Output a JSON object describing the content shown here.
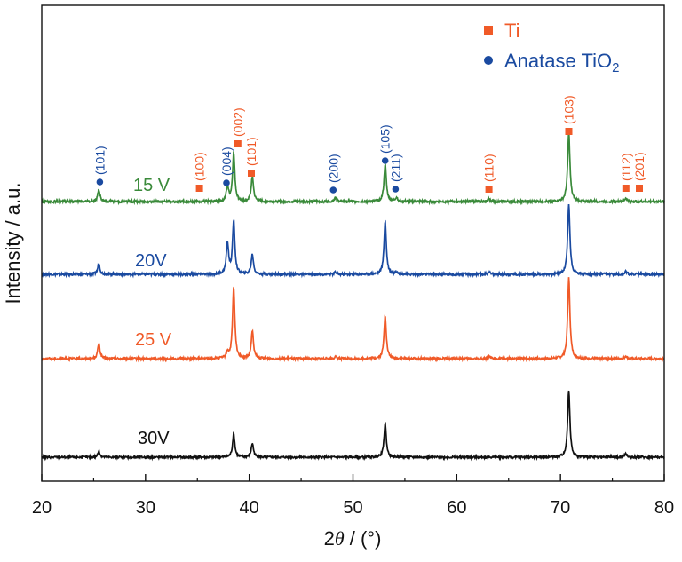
{
  "chart_data": {
    "type": "line",
    "title": "",
    "xlabel": {
      "prefix": "2",
      "symbol": "θ",
      "suffix": " / (°)"
    },
    "ylabel": "Intensity / a.u.",
    "xlim": [
      20,
      80
    ],
    "xticks": [
      "20",
      "30",
      "40",
      "50",
      "60",
      "70",
      "80"
    ],
    "legend": {
      "position": "top-right",
      "entries": [
        {
          "marker": "square",
          "color": "#f05a28",
          "label": "Ti",
          "sub": ""
        },
        {
          "marker": "circle",
          "color": "#1a4aa0",
          "label": "Anatase TiO",
          "sub": "2"
        }
      ]
    },
    "series": [
      {
        "name": "15 V",
        "color": "#3a8a3a",
        "baseline": 0.0,
        "noise_seed": 15,
        "peaks": [
          [
            25.5,
            0.9
          ],
          [
            37.9,
            1.1
          ],
          [
            38.5,
            3.6
          ],
          [
            40.3,
            1.9
          ],
          [
            48.3,
            0.3
          ],
          [
            53.1,
            2.8
          ],
          [
            54.2,
            0.3
          ],
          [
            63.1,
            0.2
          ],
          [
            70.8,
            5.2
          ],
          [
            76.3,
            0.25
          ]
        ]
      },
      {
        "name": "20V",
        "color": "#1a4aa0",
        "baseline": 0.0,
        "noise_seed": 20,
        "peaks": [
          [
            25.5,
            0.8
          ],
          [
            37.9,
            2.3
          ],
          [
            38.5,
            4.0
          ],
          [
            40.3,
            1.5
          ],
          [
            48.3,
            0.15
          ],
          [
            53.1,
            4.0
          ],
          [
            54.2,
            0.2
          ],
          [
            63.1,
            0.2
          ],
          [
            70.8,
            5.3
          ],
          [
            76.3,
            0.2
          ]
        ]
      },
      {
        "name": "25 V",
        "color": "#f05a28",
        "baseline": 0.0,
        "noise_seed": 25,
        "peaks": [
          [
            25.5,
            1.2
          ],
          [
            37.9,
            0.5
          ],
          [
            38.5,
            5.7
          ],
          [
            40.3,
            2.2
          ],
          [
            48.3,
            0.15
          ],
          [
            53.1,
            3.5
          ],
          [
            63.1,
            0.15
          ],
          [
            70.8,
            6.5
          ],
          [
            76.3,
            0.2
          ]
        ]
      },
      {
        "name": "30V",
        "color": "#111111",
        "baseline": 0.0,
        "noise_seed": 30,
        "peaks": [
          [
            25.5,
            0.5
          ],
          [
            38.5,
            2.0
          ],
          [
            40.3,
            1.2
          ],
          [
            53.1,
            2.9
          ],
          [
            70.8,
            5.8
          ],
          [
            76.3,
            0.3
          ]
        ]
      }
    ],
    "annotations": [
      {
        "label": "(101)",
        "x": 25.6,
        "phase": "anatase"
      },
      {
        "label": "(100)",
        "x": 35.2,
        "phase": "ti"
      },
      {
        "label": "(004)",
        "x": 37.8,
        "phase": "anatase"
      },
      {
        "label": "(002)",
        "x": 38.9,
        "phase": "ti"
      },
      {
        "label": "(101)",
        "x": 40.2,
        "phase": "ti"
      },
      {
        "label": "(200)",
        "x": 48.1,
        "phase": "anatase"
      },
      {
        "label": "(105)",
        "x": 53.1,
        "phase": "anatase"
      },
      {
        "label": "(211)",
        "x": 54.1,
        "phase": "anatase"
      },
      {
        "label": "(110)",
        "x": 63.1,
        "phase": "ti"
      },
      {
        "label": "(103)",
        "x": 70.8,
        "phase": "ti"
      },
      {
        "label": "(112)",
        "x": 76.3,
        "phase": "ti"
      },
      {
        "label": "(201)",
        "x": 77.6,
        "phase": "ti"
      }
    ],
    "colors": {
      "ti": "#f05a28",
      "anatase": "#1a4aa0",
      "axis": "#111111"
    }
  }
}
